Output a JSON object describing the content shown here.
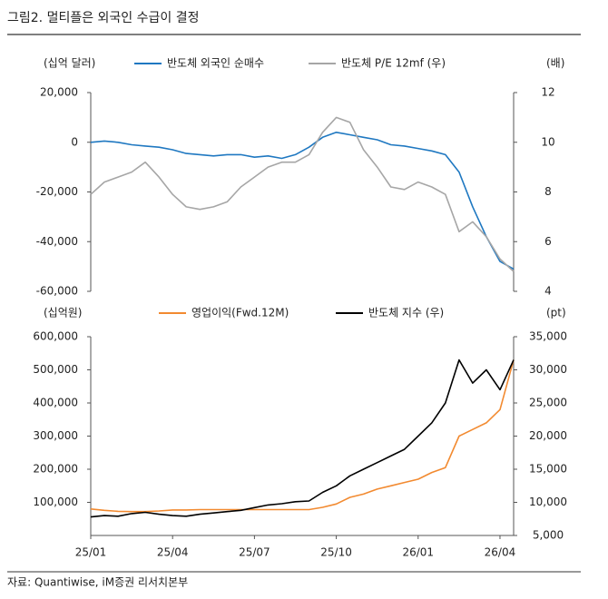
{
  "title": "그림2.   멀티플은 외국인 수급이 결정",
  "source": "자료: Quantiwise, iM증권 리서치본부",
  "chart_data": [
    {
      "type": "line",
      "y_label": "(십억 달러)",
      "y2_label": "(배)",
      "x": [
        0,
        0.5,
        1,
        1.5,
        2,
        2.5,
        3,
        3.5,
        4,
        4.5,
        5,
        5.5,
        6,
        6.5,
        7,
        7.5,
        8,
        8.5,
        9,
        9.5,
        10,
        10.5,
        11,
        11.5,
        12,
        12.5,
        13,
        13.5,
        14,
        14.5,
        15,
        15.5
      ],
      "xlim": [
        0,
        15.5
      ],
      "ylim": [
        -60000,
        20000
      ],
      "yticks": [
        {
          "value": 20000,
          "label": "20,000"
        },
        0,
        {
          "value": -20000,
          "label": "-20,000"
        },
        {
          "value": -40000,
          "label": "-40,000"
        },
        {
          "value": -60000,
          "label": "-60,000"
        }
      ],
      "y2lim": [
        4,
        12
      ],
      "y2ticks": [
        12,
        10,
        8,
        6,
        4
      ],
      "series": [
        {
          "name": "반도체 외국인 순매수",
          "color": "#1f78c1",
          "values": [
            0,
            500,
            0,
            -1000,
            -1500,
            -2000,
            -3000,
            -4500,
            -5000,
            -5500,
            -5000,
            -5000,
            -6000,
            -5500,
            -6500,
            -5000,
            -2000,
            2000,
            4000,
            3000,
            2000,
            1000,
            -1000,
            -1500,
            -2500,
            -3500,
            -5000,
            -12000,
            -26000,
            -38000,
            -48000,
            -51000
          ]
        },
        {
          "name": "반도체 P/E 12mf (우)",
          "color": "#a6a6a6",
          "axis": "y2",
          "values": [
            7.9,
            8.4,
            8.6,
            8.8,
            9.2,
            8.6,
            7.9,
            7.4,
            7.3,
            7.4,
            7.6,
            8.2,
            8.6,
            9.0,
            9.2,
            9.2,
            9.5,
            10.4,
            11.0,
            10.8,
            9.7,
            9.0,
            8.2,
            8.1,
            8.4,
            8.2,
            7.9,
            6.4,
            6.8,
            6.2,
            5.3,
            4.8
          ]
        }
      ]
    },
    {
      "type": "line",
      "y_label": "(십억원)",
      "y2_label": "(pt)",
      "x": [
        0,
        0.5,
        1,
        1.5,
        2,
        2.5,
        3,
        3.5,
        4,
        4.5,
        5,
        5.5,
        6,
        6.5,
        7,
        7.5,
        8,
        8.5,
        9,
        9.5,
        10,
        10.5,
        11,
        11.5,
        12,
        12.5,
        13,
        13.5,
        14,
        14.5,
        15,
        15.5
      ],
      "xlim": [
        0,
        15.5
      ],
      "xticks": [
        {
          "value": 0,
          "label": "25/01"
        },
        {
          "value": 3,
          "label": "25/04"
        },
        {
          "value": 6,
          "label": "25/07"
        },
        {
          "value": 9,
          "label": "25/10"
        },
        {
          "value": 12,
          "label": "26/01"
        },
        {
          "value": 15,
          "label": "26/04"
        }
      ],
      "ylim": [
        0,
        600000
      ],
      "yticks": [
        {
          "value": 600000,
          "label": "600,000"
        },
        {
          "value": 500000,
          "label": "500,000"
        },
        {
          "value": 400000,
          "label": "400,000"
        },
        {
          "value": 300000,
          "label": "300,000"
        },
        {
          "value": 200000,
          "label": "200,000"
        },
        {
          "value": 100000,
          "label": "100,000"
        }
      ],
      "y2lim": [
        5000,
        35000
      ],
      "y2ticks": [
        {
          "value": 35000,
          "label": "35,000"
        },
        {
          "value": 30000,
          "label": "30,000"
        },
        {
          "value": 25000,
          "label": "25,000"
        },
        {
          "value": 20000,
          "label": "20,000"
        },
        {
          "value": 15000,
          "label": "15,000"
        },
        {
          "value": 10000,
          "label": "10,000"
        },
        {
          "value": 5000,
          "label": "5,000"
        }
      ],
      "series": [
        {
          "name": "영업이익(Fwd.12M)",
          "color": "#f28a30",
          "values": [
            80000,
            76000,
            73000,
            72000,
            72000,
            74000,
            77000,
            77000,
            78000,
            78000,
            78000,
            78000,
            78000,
            78000,
            78000,
            78000,
            78000,
            85000,
            95000,
            115000,
            125000,
            140000,
            150000,
            160000,
            170000,
            190000,
            205000,
            300000,
            320000,
            340000,
            380000,
            530000
          ]
        },
        {
          "name": "반도체 지수 (우)",
          "color": "#000000",
          "axis": "y2",
          "values": [
            7800,
            8000,
            7900,
            8300,
            8500,
            8200,
            8000,
            7900,
            8200,
            8400,
            8600,
            8800,
            9200,
            9600,
            9800,
            10100,
            10200,
            11500,
            12500,
            14000,
            15000,
            16000,
            17000,
            18000,
            20000,
            22000,
            25000,
            31500,
            28000,
            30000,
            27000,
            31500
          ]
        }
      ]
    }
  ]
}
